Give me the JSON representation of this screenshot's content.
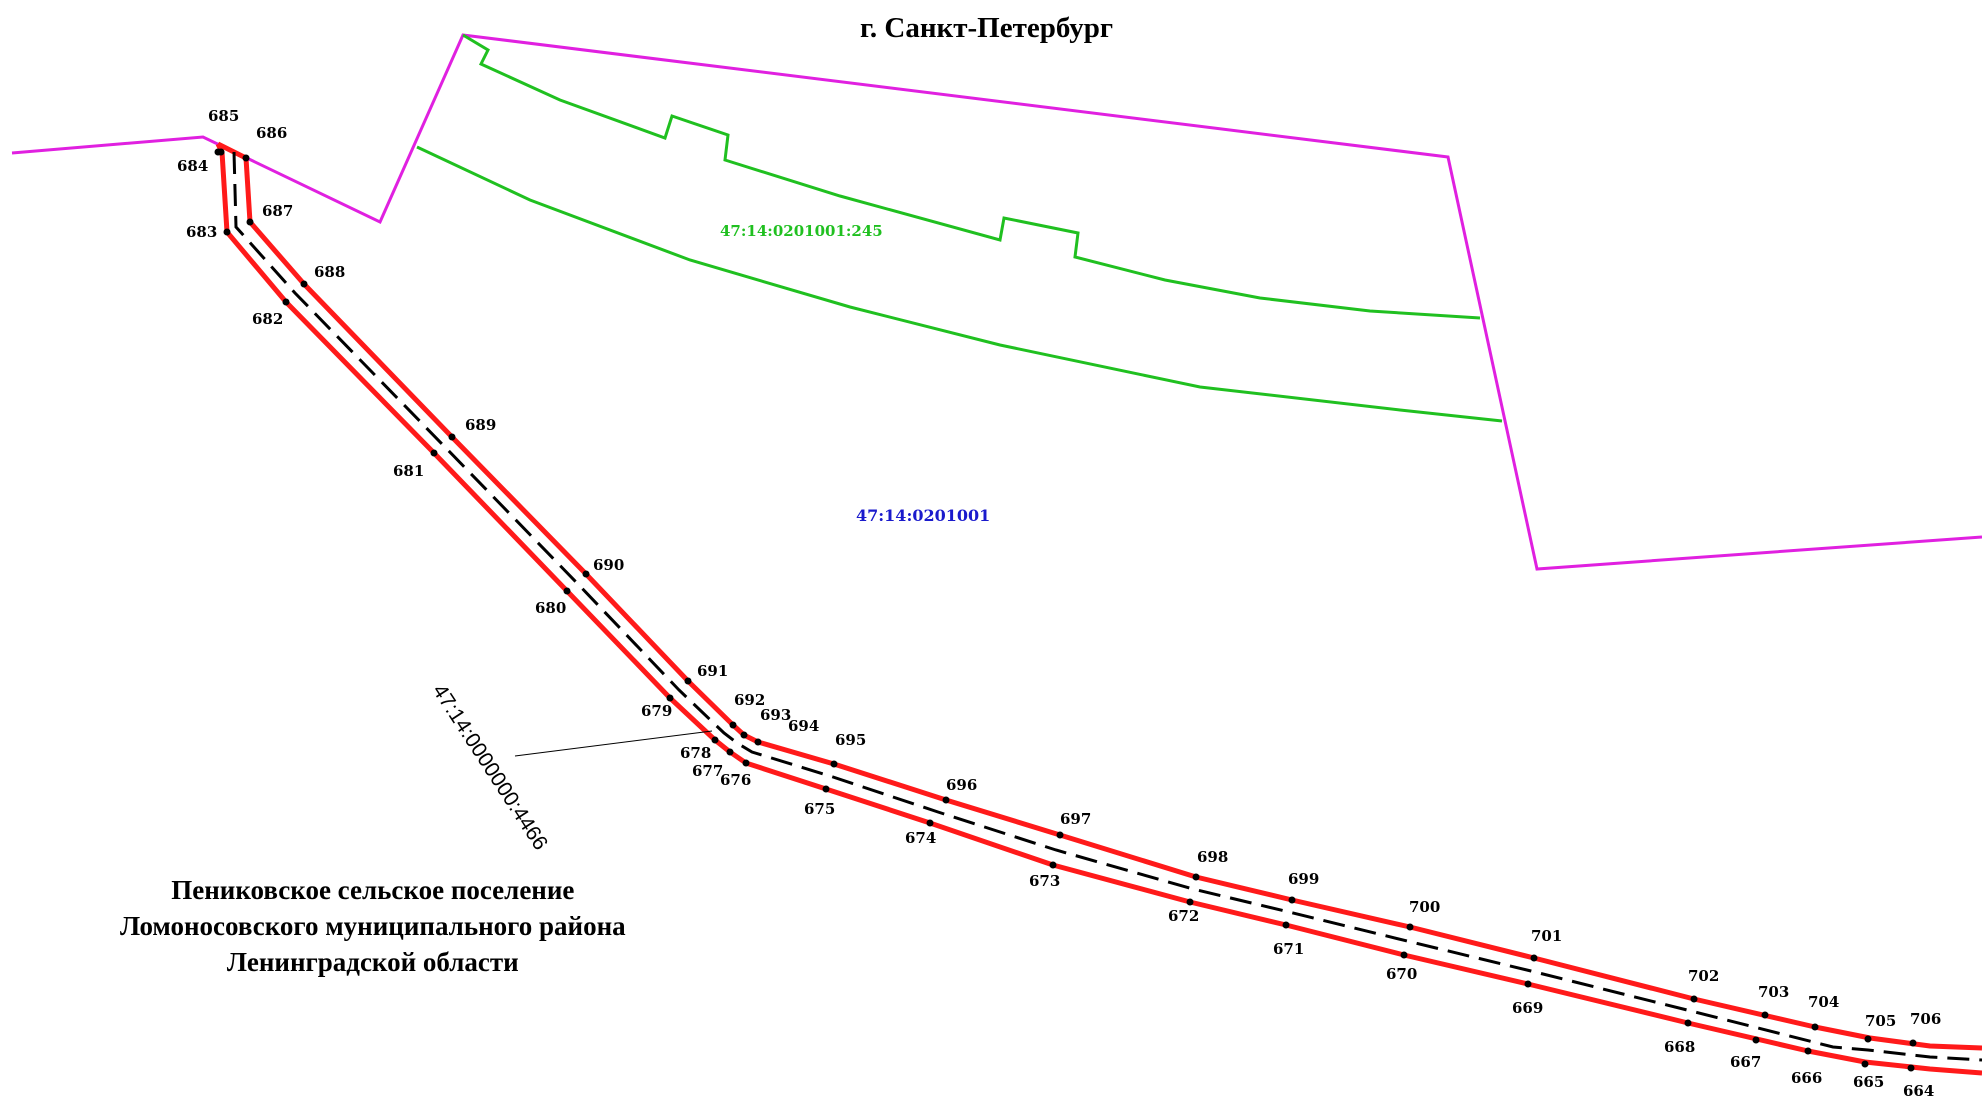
{
  "map": {
    "city_title": "г. Санкт-Петербург",
    "settlement_lines": [
      "Пениковское сельское поселение",
      "Ломоносовского муниципального района",
      "Ленинградской области"
    ],
    "parcel_green_label": "47:14:0201001:245",
    "quarter_label": "47:14:0201001",
    "linear_parcel_label": "47:14:0000000:4466",
    "colors": {
      "boundary_magenta": "#e020e0",
      "parcel_green": "#20c020",
      "route_red": "#ff1a1a",
      "axis_black": "#000000",
      "quarter_blue": "#1a1acc"
    }
  },
  "points": {
    "p664": "664",
    "p665": "665",
    "p666": "666",
    "p667": "667",
    "p668": "668",
    "p669": "669",
    "p670": "670",
    "p671": "671",
    "p672": "672",
    "p673": "673",
    "p674": "674",
    "p675": "675",
    "p676": "676",
    "p677": "677",
    "p678": "678",
    "p679": "679",
    "p680": "680",
    "p681": "681",
    "p682": "682",
    "p683": "683",
    "p684": "684",
    "p685": "685",
    "p686": "686",
    "p687": "687",
    "p688": "688",
    "p689": "689",
    "p690": "690",
    "p691": "691",
    "p692": "692",
    "p693": "693",
    "p694": "694",
    "p695": "695",
    "p696": "696",
    "p697": "697",
    "p698": "698",
    "p699": "699",
    "p700": "700",
    "p701": "701",
    "p702": "702",
    "p703": "703",
    "p704": "704",
    "p705": "705",
    "p706": "706"
  }
}
